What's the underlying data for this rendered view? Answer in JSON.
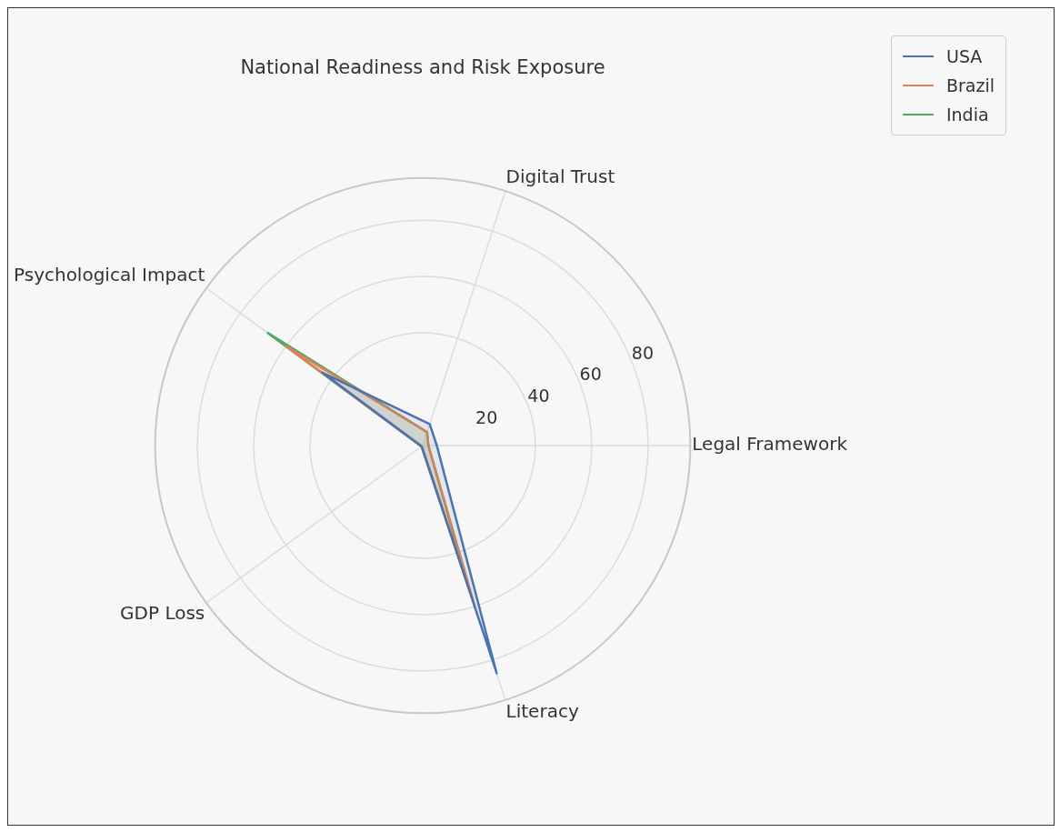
{
  "chart_data": {
    "type": "radar",
    "title": "National Readiness and Risk Exposure",
    "categories": [
      "Digital Trust",
      "Legal Framework",
      "Literacy",
      "GDP Loss",
      "Psychological Impact"
    ],
    "series": [
      {
        "name": "USA",
        "color": "#4c72b0",
        "values": [
          8,
          5,
          85,
          0.5,
          44
        ]
      },
      {
        "name": "Brazil",
        "color": "#dd8452",
        "values": [
          5,
          2,
          59,
          0.5,
          60
        ]
      },
      {
        "name": "India",
        "color": "#55a868",
        "values": [
          5,
          2,
          52,
          0.5,
          68
        ]
      }
    ],
    "ylim": [
      0,
      95
    ],
    "yticks": [
      20,
      40,
      60,
      80
    ],
    "grid": true,
    "legend": "top right"
  }
}
